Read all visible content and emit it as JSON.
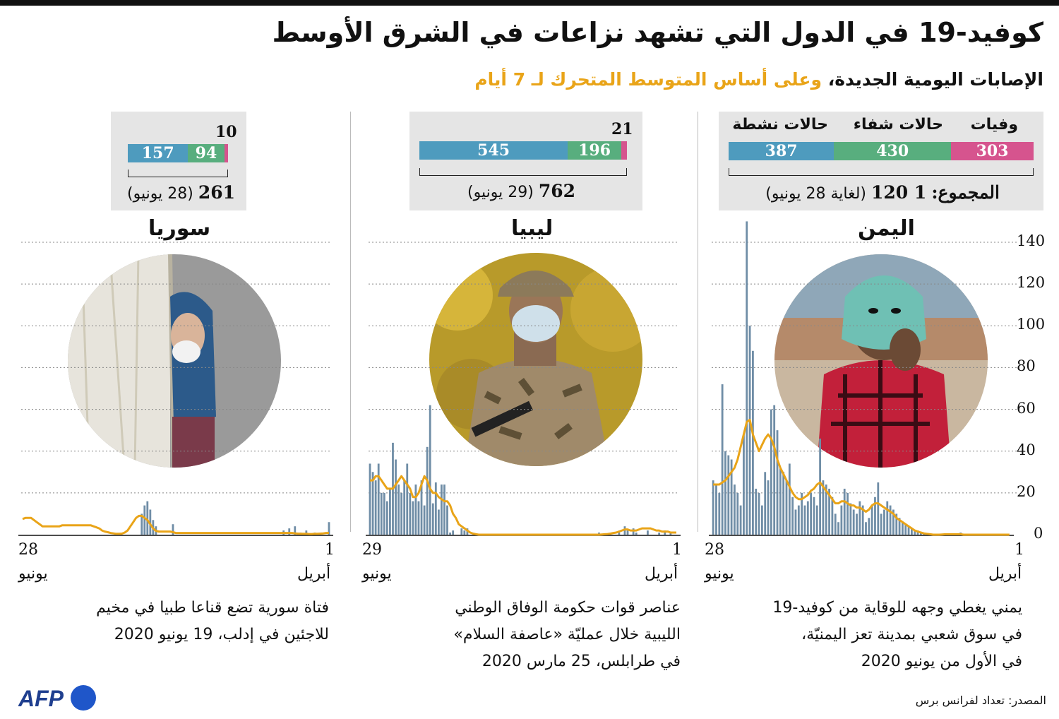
{
  "title": "كوفيد-19 في الدول التي تشهد نزاعات في الشرق الأوسط",
  "subtitle_main": "الإصابات اليومية الجديدة،",
  "subtitle_hl": "وعلى أساس المتوسط المتحرك لـ 7 أيام",
  "source": "المصدر: تعداد لفرانس برس",
  "logo_text": "AFP",
  "colors": {
    "active": "#4e9bbe",
    "recovered": "#58ae7e",
    "deaths": "#d6548e",
    "bars": "#6f8da6",
    "avg": "#e9a418"
  },
  "legend": {
    "deaths": "وفيات",
    "recovered": "حالات شفاء",
    "active": "حالات نشطة"
  },
  "chart_data": [
    {
      "type": "bar",
      "country": "اليمن",
      "title": "اليمن",
      "x_start_day": "28",
      "x_start_month": "يونيو",
      "x_end_day": "1",
      "x_end_month": "أبريل",
      "yticks": [
        "140",
        "120",
        "100",
        "80",
        "60",
        "40",
        "20",
        "0"
      ],
      "ylim": [
        0,
        150
      ],
      "summary": {
        "active": 387,
        "recovered": 430,
        "deaths": 303,
        "active_label": "387",
        "recovered_label": "430",
        "deaths_label": "303",
        "total_prefix": "المجموع:",
        "total": "1 120",
        "total_note": "(لغاية 28 يونيو)"
      },
      "values": [
        0,
        0,
        0,
        0,
        0,
        0,
        0,
        0,
        0,
        0,
        0,
        0,
        0,
        0,
        0,
        0,
        1,
        0,
        0,
        0,
        0,
        0,
        0,
        0,
        0,
        0,
        0,
        0,
        1,
        1,
        2,
        2,
        3,
        4,
        5,
        6,
        8,
        10,
        12,
        14,
        16,
        12,
        10,
        25,
        18,
        14,
        8,
        6,
        14,
        16,
        10,
        12,
        15,
        20,
        22,
        14,
        6,
        10,
        18,
        22,
        24,
        26,
        46,
        14,
        18,
        20,
        16,
        14,
        20,
        14,
        12,
        18,
        34,
        26,
        30,
        32,
        50,
        62,
        60,
        26,
        30,
        14,
        20,
        22,
        88,
        100,
        150,
        48,
        14,
        20,
        24,
        36,
        38,
        40,
        72,
        20,
        24,
        26
      ],
      "avg": [
        0,
        0,
        0,
        0,
        0,
        0,
        0,
        0,
        0,
        0,
        0,
        0,
        0,
        0,
        0,
        0,
        0.2,
        0.2,
        0.2,
        0.2,
        0.2,
        0.2,
        0.1,
        0,
        0,
        0,
        0.2,
        0.4,
        0.6,
        1,
        1.5,
        2,
        3,
        4,
        5,
        6,
        7,
        8,
        10,
        11,
        12,
        13,
        14,
        15,
        15,
        14,
        12,
        11,
        12,
        13,
        13,
        14,
        14,
        15,
        16,
        16,
        15,
        15,
        17,
        19,
        21,
        23,
        25,
        24,
        22,
        21,
        19,
        18,
        17,
        17,
        18,
        20,
        23,
        26,
        29,
        32,
        36,
        42,
        46,
        48,
        46,
        43,
        40,
        44,
        48,
        55,
        54,
        48,
        42,
        36,
        32,
        30,
        28,
        26,
        25,
        24,
        24,
        24
      ]
    },
    {
      "type": "bar",
      "country": "ليبيا",
      "title": "ليبيا",
      "x_start_day": "29",
      "x_start_month": "يونيو",
      "x_end_day": "1",
      "x_end_month": "أبريل",
      "summary": {
        "active": 545,
        "recovered": 196,
        "deaths": 21,
        "active_label": "545",
        "recovered_label": "196",
        "deaths_label": "21",
        "total": "762",
        "total_note": "(29 يونيو)"
      },
      "values": [
        0,
        0,
        1,
        0,
        2,
        0,
        1,
        0,
        0,
        0,
        2,
        0,
        0,
        0,
        1,
        3,
        0,
        2,
        4,
        0,
        1,
        0,
        0,
        0,
        0,
        0,
        0,
        1,
        0,
        0,
        0,
        0,
        0,
        0,
        0,
        0,
        0,
        0,
        0,
        0,
        0,
        0,
        0,
        0,
        0,
        0,
        0,
        0,
        0,
        0,
        0,
        0,
        0,
        0,
        0,
        0,
        0,
        0,
        0,
        0,
        0,
        0,
        0,
        0,
        0,
        0,
        0,
        0,
        0,
        0,
        0,
        0,
        0,
        3,
        2,
        3,
        0,
        0,
        2,
        1,
        14,
        24,
        24,
        12,
        25,
        15,
        62,
        42,
        14,
        26,
        16,
        24,
        16,
        20,
        34,
        26,
        20,
        24,
        36,
        44,
        22,
        16,
        20,
        20,
        34,
        26,
        30,
        34
      ],
      "avg": [
        1,
        1,
        1,
        1.5,
        1.5,
        1.5,
        2,
        2,
        2.5,
        3,
        3,
        3,
        3,
        2.5,
        2,
        2,
        2,
        2.5,
        2.5,
        2,
        1.5,
        1,
        0.8,
        0.5,
        0.3,
        0.2,
        0.1,
        0,
        0,
        0,
        0,
        0,
        0,
        0,
        0,
        0,
        0,
        0,
        0,
        0,
        0,
        0,
        0,
        0,
        0,
        0,
        0,
        0,
        0,
        0,
        0,
        0,
        0,
        0,
        0,
        0,
        0,
        0,
        0,
        0,
        0,
        0,
        0,
        0,
        0,
        0,
        0,
        0,
        0,
        0,
        0.2,
        0.5,
        1,
        2,
        3,
        4,
        5,
        8,
        10,
        14,
        16,
        16,
        17,
        18,
        20,
        20,
        22,
        26,
        28,
        24,
        20,
        18,
        18,
        22,
        24,
        26,
        28,
        26,
        24,
        22,
        22,
        22,
        24,
        26,
        28,
        28,
        26,
        26
      ]
    },
    {
      "type": "bar",
      "country": "سوريا",
      "title": "سوريا",
      "x_start_day": "28",
      "x_start_month": "يونيو",
      "x_end_day": "1",
      "x_end_month": "أبريل",
      "summary": {
        "active": 157,
        "recovered": 94,
        "deaths": 10,
        "active_label": "157",
        "recovered_label": "94",
        "deaths_label": "10",
        "total": "261",
        "total_note": "(28 يونيو)"
      },
      "values": [
        6,
        0,
        0,
        0,
        0,
        1,
        0,
        0,
        2,
        0,
        1,
        0,
        4,
        0,
        3,
        0,
        2,
        0,
        0,
        0,
        0,
        0,
        0,
        0,
        0,
        0,
        0,
        0,
        0,
        0,
        0,
        0,
        0,
        0,
        0,
        0,
        0,
        0,
        0,
        0,
        0,
        0,
        0,
        0,
        0,
        0,
        0,
        0,
        0,
        0,
        0,
        0,
        0,
        0,
        0,
        5,
        0,
        0,
        0,
        0,
        0,
        4,
        7,
        12,
        16,
        14,
        10,
        0,
        0,
        0,
        0,
        0,
        0,
        0,
        0,
        0,
        0,
        0,
        0,
        0,
        0,
        0,
        0,
        0,
        0,
        0,
        0,
        0,
        0,
        0,
        0,
        0,
        0,
        0,
        0,
        0,
        0,
        0,
        0,
        0,
        0,
        0,
        0,
        0,
        0,
        0,
        0,
        0,
        0
      ],
      "avg": [
        0.8,
        0.8,
        0.6,
        0.5,
        0.4,
        0.4,
        0.3,
        0.3,
        0.4,
        0.4,
        0.4,
        0.5,
        0.6,
        0.8,
        0.8,
        0.8,
        0.8,
        0.8,
        0.8,
        0.8,
        0.8,
        0.8,
        0.8,
        0.8,
        0.8,
        0.8,
        0.8,
        0.8,
        0.8,
        0.8,
        0.8,
        0.8,
        0.8,
        0.8,
        0.8,
        0.8,
        0.8,
        0.8,
        0.8,
        0.8,
        0.8,
        0.8,
        0.8,
        0.8,
        0.8,
        0.8,
        0.8,
        0.8,
        0.8,
        0.8,
        0.8,
        0.8,
        0.8,
        0.8,
        0.8,
        1.2,
        1.5,
        1.5,
        1.5,
        1.5,
        1.5,
        1.8,
        3,
        5,
        7,
        8,
        9,
        9,
        8,
        6,
        4,
        2,
        1,
        0.5,
        0.4,
        0.4,
        0.6,
        0.8,
        1.2,
        1.5,
        2,
        3,
        3.5,
        4,
        4.5,
        4.5,
        4.5,
        4.5,
        4.5,
        4.5,
        4.5,
        4.5,
        4.5,
        4.5,
        4.5,
        4,
        4,
        4,
        4,
        4,
        4,
        4,
        5,
        6,
        7,
        8,
        8,
        8,
        7.5
      ]
    }
  ],
  "captions": {
    "yemen": [
      "يمني يغطي وجهه للوقاية من كوفيد-19",
      "في سوق شعبي بمدينة تعز اليمنيّة،",
      "في الأول من يونيو 2020"
    ],
    "libya": [
      "عناصر قوات حكومة الوفاق الوطني",
      "الليبية خلال عمليّة «عاصفة السلام»",
      "في طرابلس، 25 مارس 2020"
    ],
    "syria": [
      "فتاة سورية تضع قناعا طبيا في مخيم",
      "للاجئين في إدلب، 19 يونيو 2020"
    ]
  },
  "photos": {
    "yemen": "photo-man-with-turban-icon",
    "libya": "photo-masked-soldier-icon",
    "syria": "photo-masked-girl-icon"
  }
}
